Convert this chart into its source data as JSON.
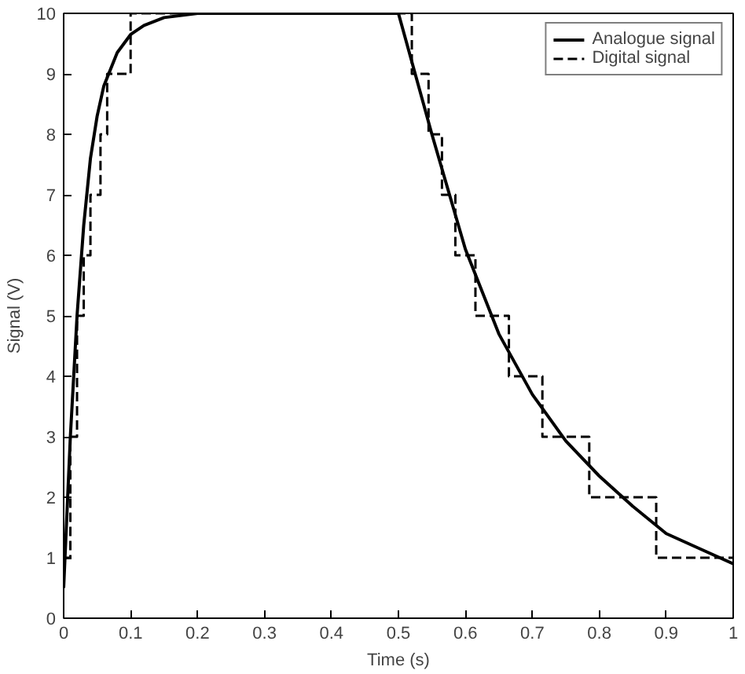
{
  "chart_data": {
    "type": "line",
    "xlabel": "Time (s)",
    "ylabel": "Signal (V)",
    "xlim": [
      0,
      1
    ],
    "ylim": [
      0,
      10
    ],
    "xticks": [
      0,
      0.1,
      0.2,
      0.3,
      0.4,
      0.5,
      0.6,
      0.7,
      0.8,
      0.9,
      1
    ],
    "yticks": [
      0,
      1,
      2,
      3,
      4,
      5,
      6,
      7,
      8,
      9,
      10
    ],
    "grid": false,
    "legend": "top right",
    "series": [
      {
        "name": "Analogue signal",
        "color": "#000000",
        "line_style": "solid",
        "x": [
          0,
          0.01,
          0.02,
          0.03,
          0.04,
          0.05,
          0.06,
          0.08,
          0.1,
          0.12,
          0.15,
          0.2,
          0.3,
          0.5,
          0.55,
          0.6,
          0.65,
          0.7,
          0.75,
          0.8,
          0.85,
          0.9,
          0.95,
          1.0
        ],
        "values": [
          0.5,
          3.0,
          5.0,
          6.5,
          7.6,
          8.3,
          8.8,
          9.35,
          9.65,
          9.8,
          9.93,
          10,
          10,
          10,
          8.0,
          6.1,
          4.7,
          3.7,
          2.93,
          2.35,
          1.85,
          1.4,
          1.15,
          0.9
        ]
      },
      {
        "name": "Digital signal",
        "type": "step",
        "color": "#000000",
        "line_style": "dashed",
        "x": [
          0,
          0.01,
          0.02,
          0.03,
          0.04,
          0.055,
          0.065,
          0.1,
          0.52,
          0.545,
          0.565,
          0.585,
          0.615,
          0.665,
          0.715,
          0.785,
          0.885,
          1.0
        ],
        "values": [
          1,
          3,
          5,
          6,
          7,
          8,
          9,
          10,
          9,
          8,
          7,
          6,
          5,
          4,
          3,
          2,
          1,
          1
        ]
      }
    ]
  }
}
